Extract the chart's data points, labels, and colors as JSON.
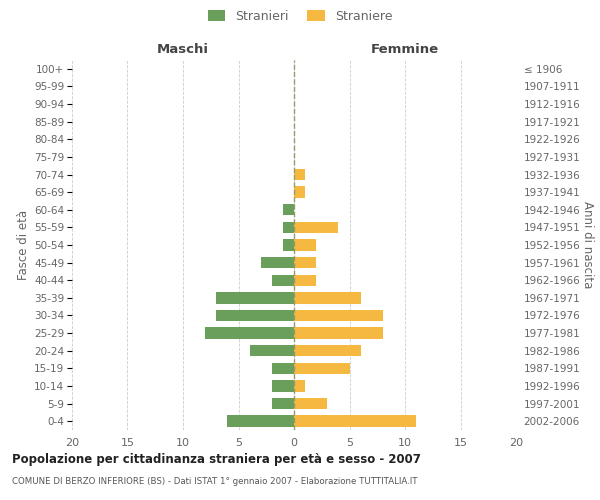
{
  "age_groups_bottom_to_top": [
    "0-4",
    "5-9",
    "10-14",
    "15-19",
    "20-24",
    "25-29",
    "30-34",
    "35-39",
    "40-44",
    "45-49",
    "50-54",
    "55-59",
    "60-64",
    "65-69",
    "70-74",
    "75-79",
    "80-84",
    "85-89",
    "90-94",
    "95-99",
    "100+"
  ],
  "birth_years_bottom_to_top": [
    "2002-2006",
    "1997-2001",
    "1992-1996",
    "1987-1991",
    "1982-1986",
    "1977-1981",
    "1972-1976",
    "1967-1971",
    "1962-1966",
    "1957-1961",
    "1952-1956",
    "1947-1951",
    "1942-1946",
    "1937-1941",
    "1932-1936",
    "1927-1931",
    "1922-1926",
    "1917-1921",
    "1912-1916",
    "1907-1911",
    "≤ 1906"
  ],
  "males_bottom_to_top": [
    6,
    2,
    2,
    2,
    4,
    8,
    7,
    7,
    2,
    3,
    1,
    1,
    1,
    0,
    0,
    0,
    0,
    0,
    0,
    0,
    0
  ],
  "females_bottom_to_top": [
    11,
    3,
    1,
    5,
    6,
    8,
    8,
    6,
    2,
    2,
    2,
    4,
    0,
    1,
    1,
    0,
    0,
    0,
    0,
    0,
    0
  ],
  "male_color": "#6a9e5b",
  "female_color": "#f5b942",
  "title_main": "Popolazione per cittadinanza straniera per età e sesso - 2007",
  "title_sub": "COMUNE DI BERZO INFERIORE (BS) - Dati ISTAT 1° gennaio 2007 - Elaborazione TUTTITALIA.IT",
  "ylabel_left": "Fasce di età",
  "ylabel_right": "Anni di nascita",
  "legend_male": "Stranieri",
  "legend_female": "Straniere",
  "header_left": "Maschi",
  "header_right": "Femmine",
  "xlim": 20,
  "bg_color": "#ffffff",
  "grid_color": "#cccccc",
  "axis_label_color": "#666666",
  "tick_label_color": "#666666"
}
